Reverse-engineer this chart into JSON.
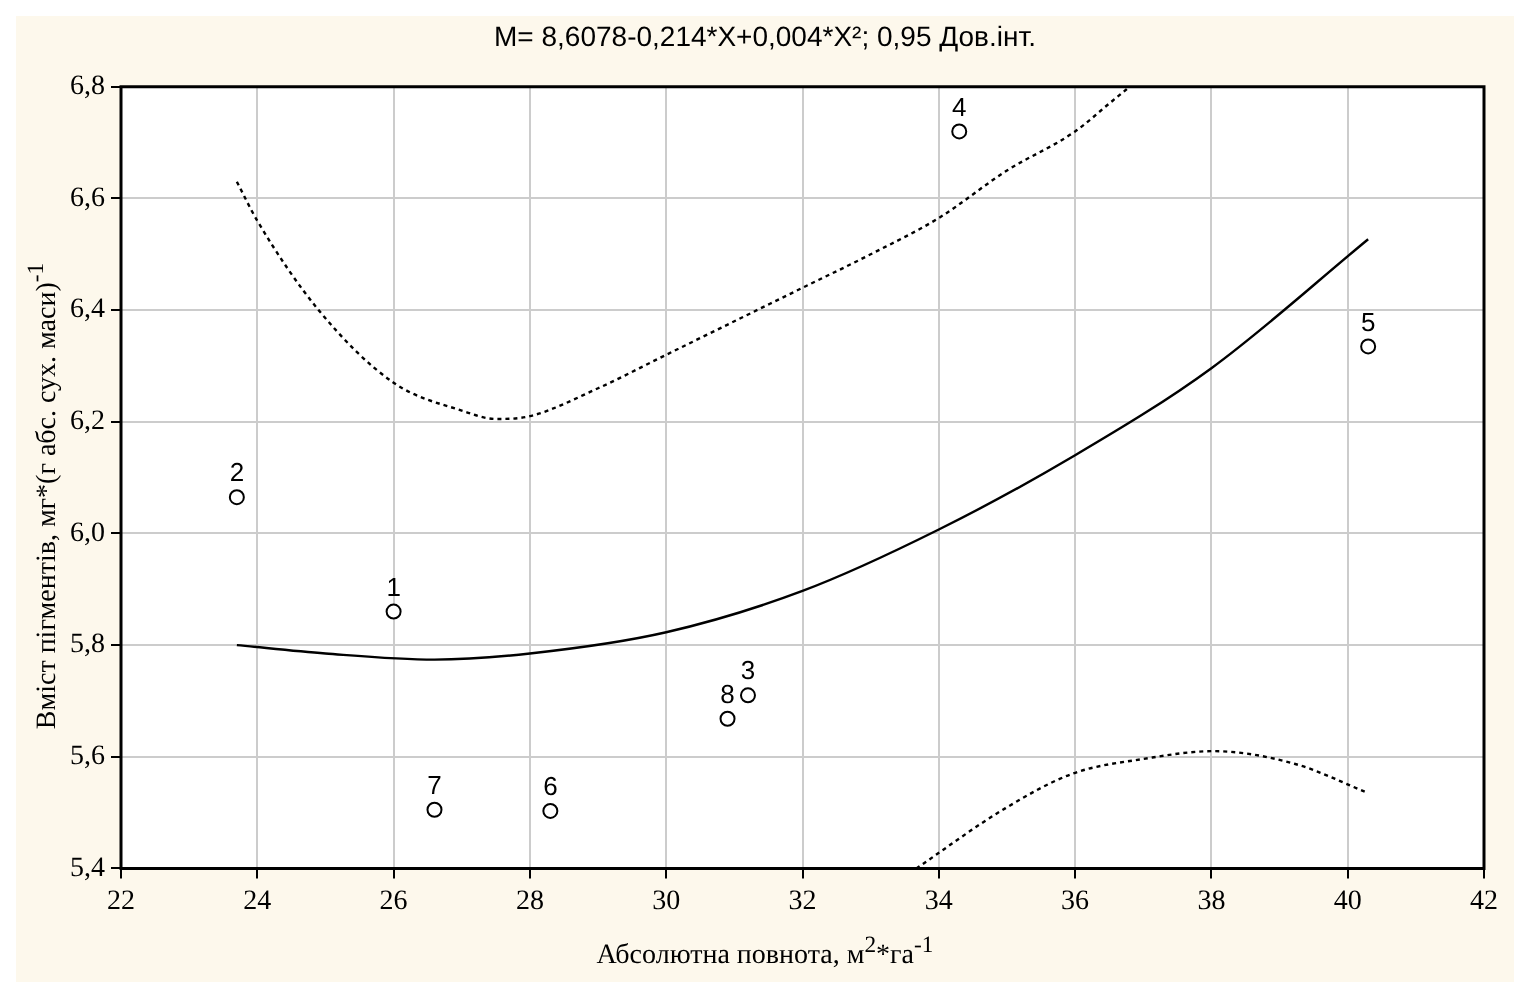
{
  "chart_data": {
    "type": "scatter",
    "title": "M= 8,6078-0,214*X+0,004*X²; 0,95 Дов.інт.",
    "xlabel": "Абсолютна повнота, м$^{2}$*га$^{-1}$",
    "ylabel": "Вміст пігментів, мг*(г абс. сух. маси)$^{-1}$",
    "series": [
      {
        "type": "scatter",
        "color": "#000000",
        "marker": "circle",
        "x": [
          26.0,
          23.7,
          31.2,
          34.3,
          40.3,
          28.3,
          26.6,
          30.9
        ],
        "values": [
          5.86,
          6.065,
          5.71,
          6.72,
          6.335,
          5.503,
          5.505,
          5.668
        ]
      },
      {
        "type": "line",
        "color": "#000000",
        "line_style": "solid",
        "x": [
          23.7,
          25,
          26.6,
          28,
          30,
          32,
          34,
          36,
          38,
          40.3
        ],
        "values": [
          5.8,
          5.785,
          5.774,
          5.785,
          5.823,
          5.897,
          6.007,
          6.14,
          6.296,
          6.527
        ]
      },
      {
        "type": "line",
        "color": "#000000",
        "line_style": "dotted",
        "x": [
          23.7,
          24,
          24.9,
          26,
          27,
          27.5,
          28,
          29,
          30,
          31,
          32,
          33,
          34,
          35,
          36,
          36.5,
          36.8
        ],
        "values": [
          6.63,
          6.56,
          6.4,
          6.27,
          6.22,
          6.205,
          6.21,
          6.26,
          6.32,
          6.38,
          6.44,
          6.5,
          6.565,
          6.65,
          6.72,
          6.77,
          6.8
        ]
      },
      {
        "type": "line",
        "color": "#000000",
        "line_style": "dotted",
        "x": [
          33.67,
          34.98,
          35.97,
          37,
          38.03,
          39.23,
          40.3
        ],
        "values": [
          5.4,
          5.508,
          5.57,
          5.596,
          5.61,
          5.587,
          5.535
        ]
      }
    ],
    "xlim": [
      22,
      42
    ],
    "xticks": [
      22,
      24,
      26,
      28,
      30,
      32,
      34,
      36,
      38,
      40,
      42
    ],
    "ylim": [
      5.4,
      6.8
    ],
    "yticks": [
      {
        "value": 5.4,
        "label": "5,4"
      },
      {
        "value": 5.6,
        "label": "5,6"
      },
      {
        "value": 5.8,
        "label": "5,8"
      },
      {
        "value": 6.0,
        "label": "6,0"
      },
      {
        "value": 6.2,
        "label": "6,2"
      },
      {
        "value": 6.4,
        "label": "6,4"
      },
      {
        "value": 6.6,
        "label": "6,6"
      },
      {
        "value": 6.8,
        "label": "6,8"
      }
    ],
    "grid": true,
    "legend": false,
    "annotations": [
      {
        "text": "1",
        "x": 26.0,
        "y": 5.86
      },
      {
        "text": "2",
        "x": 23.7,
        "y": 6.065
      },
      {
        "text": "3",
        "x": 31.2,
        "y": 5.71
      },
      {
        "text": "4",
        "x": 34.3,
        "y": 6.72
      },
      {
        "text": "5",
        "x": 40.3,
        "y": 6.335
      },
      {
        "text": "6",
        "x": 28.3,
        "y": 5.503
      },
      {
        "text": "7",
        "x": 26.6,
        "y": 5.505
      },
      {
        "text": "8",
        "x": 30.9,
        "y": 5.668
      }
    ]
  }
}
